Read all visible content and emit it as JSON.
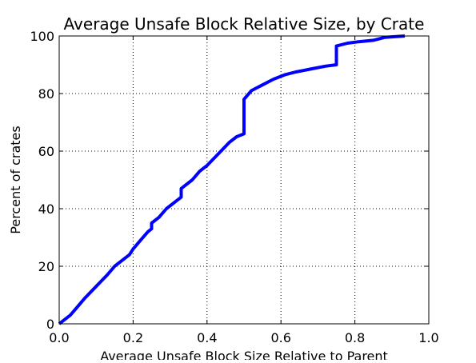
{
  "chart_data": {
    "type": "line",
    "title": "Average Unsafe Block Relative Size, by Crate",
    "xlabel": "Average Unsafe Block Size Relative to Parent",
    "ylabel": "Percent of crates",
    "xlim": [
      0.0,
      1.0
    ],
    "ylim": [
      0,
      100
    ],
    "x_ticks": [
      "0.0",
      "0.2",
      "0.4",
      "0.6",
      "0.8",
      "1.0"
    ],
    "y_ticks": [
      "0",
      "20",
      "40",
      "60",
      "80",
      "100"
    ],
    "grid": true,
    "line_color": "#0000ff",
    "series": [
      {
        "x": [
          0.0,
          0.01,
          0.02,
          0.03,
          0.05,
          0.07,
          0.1,
          0.13,
          0.15,
          0.17,
          0.19,
          0.2,
          0.22,
          0.24,
          0.25,
          0.25,
          0.27,
          0.29,
          0.31,
          0.33,
          0.33,
          0.36,
          0.38,
          0.4,
          0.43,
          0.46,
          0.48,
          0.5,
          0.5,
          0.52,
          0.55,
          0.58,
          0.61,
          0.64,
          0.68,
          0.72,
          0.75,
          0.75,
          0.78,
          0.81,
          0.85,
          0.88,
          0.935
        ],
        "y": [
          0,
          1,
          2,
          3,
          6,
          9,
          13,
          17,
          20,
          22,
          24,
          26,
          29,
          32,
          33,
          35,
          37,
          40,
          42,
          44,
          47,
          50,
          53,
          55,
          59,
          63,
          65,
          66,
          78,
          81,
          83,
          85,
          86.5,
          87.5,
          88.5,
          89.5,
          90,
          96.5,
          97.5,
          98,
          98.5,
          99.5,
          100
        ]
      }
    ]
  }
}
